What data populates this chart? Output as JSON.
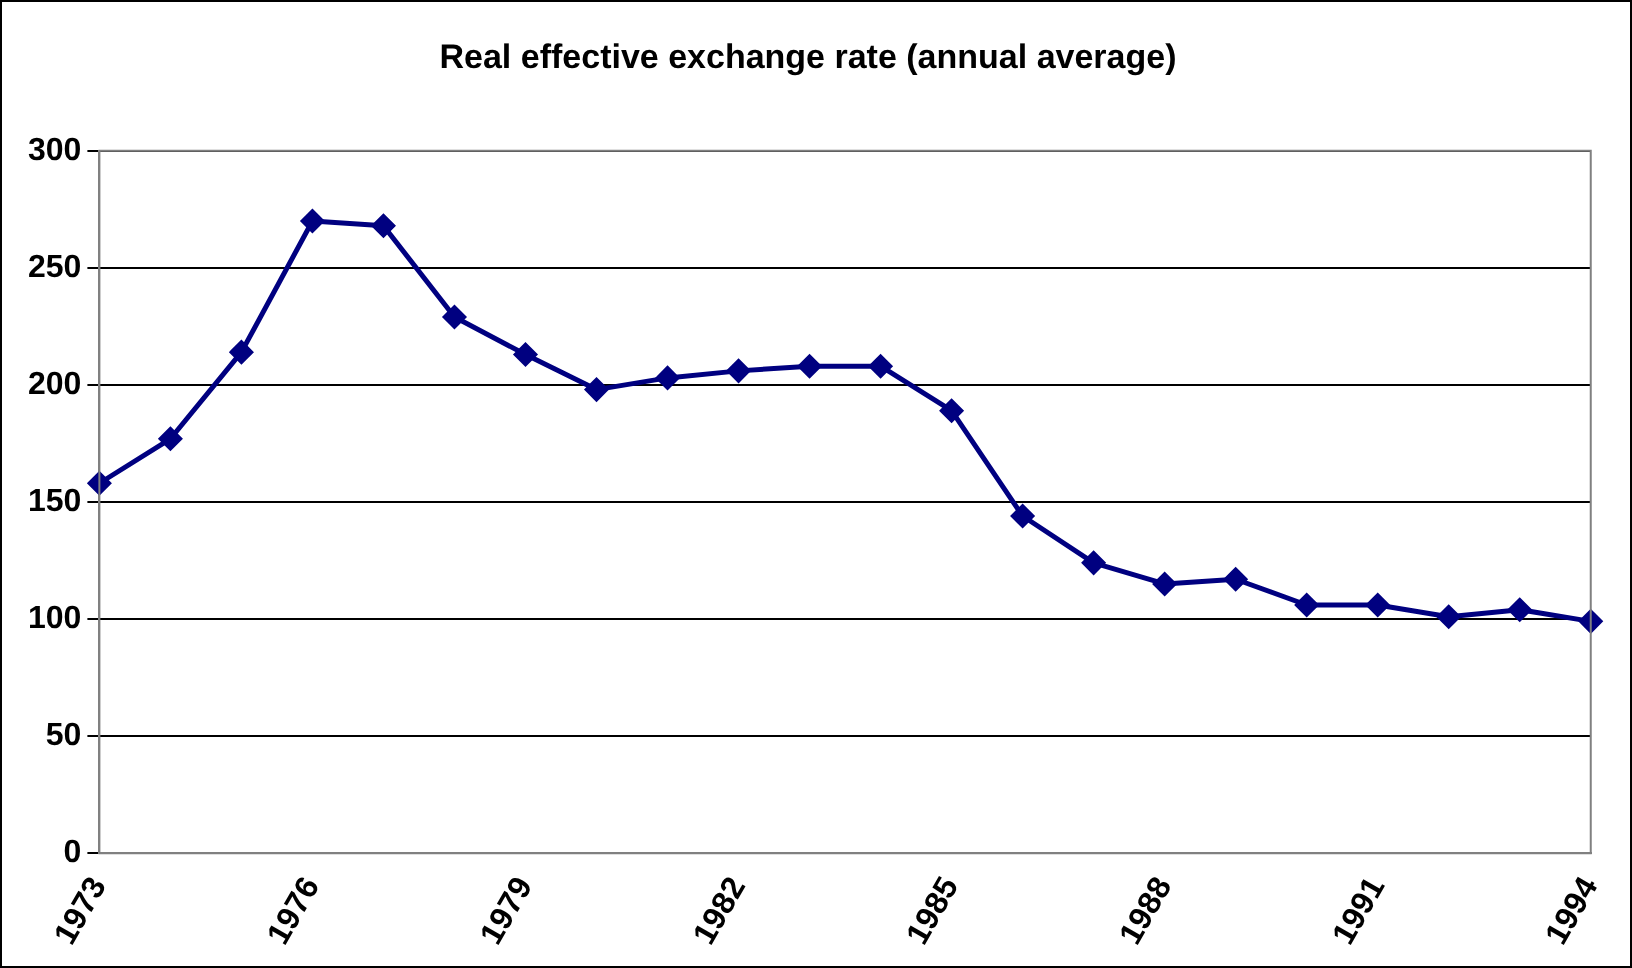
{
  "chart_data": {
    "type": "line",
    "title": "Real effective exchange rate (annual average)",
    "categories": [
      "1973",
      null,
      null,
      "1976",
      null,
      null,
      "1979",
      null,
      null,
      "1982",
      null,
      null,
      "1985",
      null,
      null,
      "1988",
      null,
      null,
      "1991",
      null,
      null,
      "1994"
    ],
    "series": [
      {
        "color": "#000080",
        "values": [
          158,
          177,
          214,
          270,
          268,
          229,
          213,
          198,
          203,
          206,
          208,
          208,
          189,
          144,
          124,
          115,
          117,
          106,
          106,
          101,
          104,
          99
        ]
      }
    ],
    "ylim": [
      0,
      300
    ],
    "yticks": [
      0,
      50,
      100,
      150,
      200,
      250,
      300
    ],
    "grid": "y",
    "legend": false,
    "marker": "diamond",
    "line_style": "solid"
  }
}
